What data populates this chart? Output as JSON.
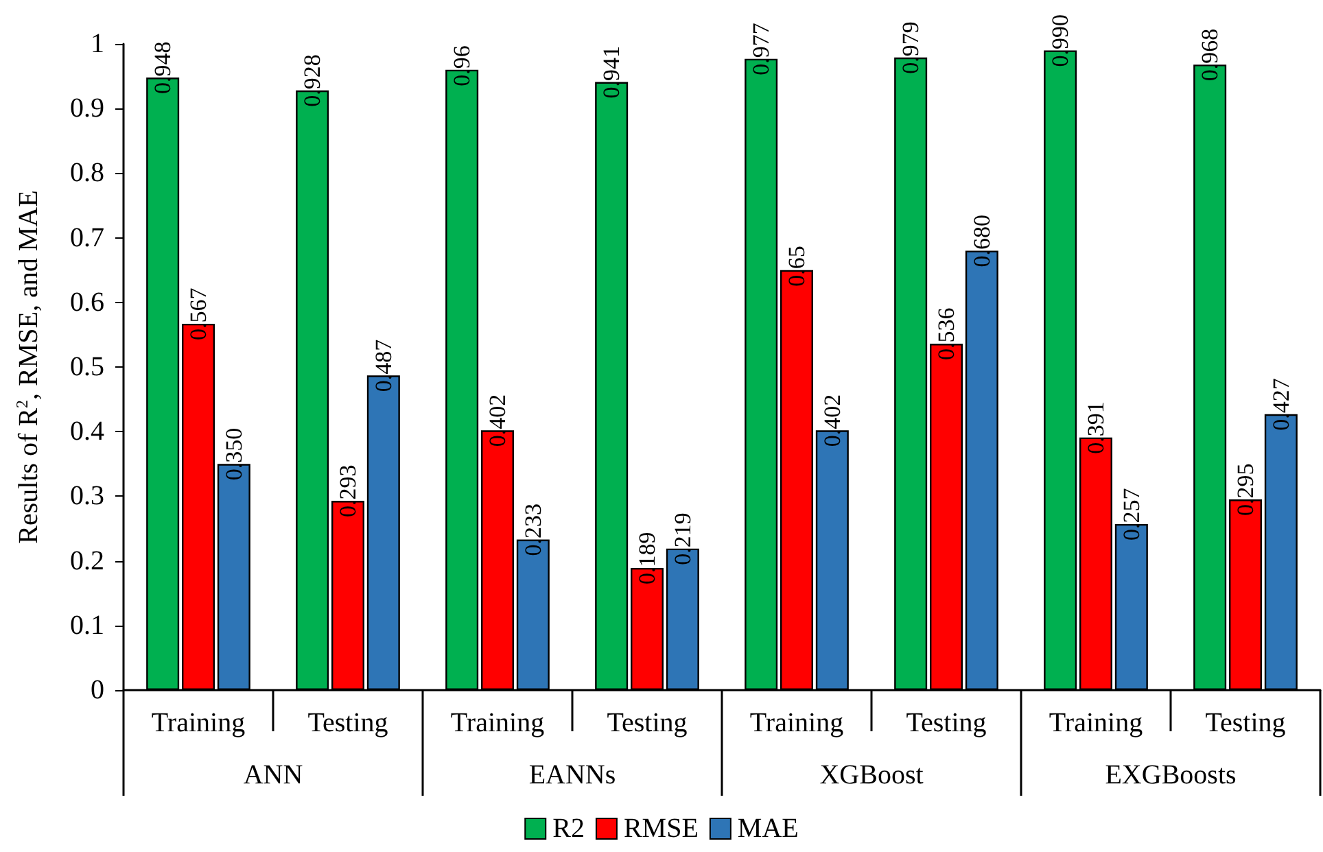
{
  "chart_data": {
    "type": "bar",
    "ylabel": "Results of R$^{2}$, RMSE, and MAE",
    "categories": [
      "Training",
      "Testing",
      "Training",
      "Testing",
      "Training",
      "Testing",
      "Training",
      "Testing"
    ],
    "annotations": [
      "ANN",
      "EANNs",
      "XGBoost",
      "EXGBoosts"
    ],
    "series": [
      {
        "name": "R2",
        "color": "#00b050",
        "values": [
          0.948,
          0.928,
          0.96,
          0.941,
          0.977,
          0.979,
          0.99,
          0.968
        ],
        "value_labels": [
          "0.948",
          "0.928",
          "0.96",
          "0.941",
          "0.977",
          "0.979",
          "0.990",
          "0.968"
        ]
      },
      {
        "name": "RMSE",
        "color": "#ff0000",
        "values": [
          0.567,
          0.293,
          0.402,
          0.189,
          0.65,
          0.536,
          0.391,
          0.295
        ],
        "value_labels": [
          "0.567",
          "0.293",
          "0.402",
          "0.189",
          "0.65",
          "0.536",
          "0.391",
          "0.295"
        ]
      },
      {
        "name": "MAE",
        "color": "#2e75b6",
        "values": [
          0.35,
          0.487,
          0.233,
          0.219,
          0.402,
          0.68,
          0.257,
          0.427
        ],
        "value_labels": [
          "0.350",
          "0.487",
          "0.233",
          "0.219",
          "0.402",
          "0.680",
          "0.257",
          "0.427"
        ]
      }
    ],
    "ylim": [
      0,
      1
    ],
    "yticks": [
      0,
      0.1,
      0.2,
      0.3,
      0.4,
      0.5,
      0.6,
      0.7,
      0.8,
      0.9,
      1
    ],
    "grid": false,
    "legend": "bottom"
  }
}
